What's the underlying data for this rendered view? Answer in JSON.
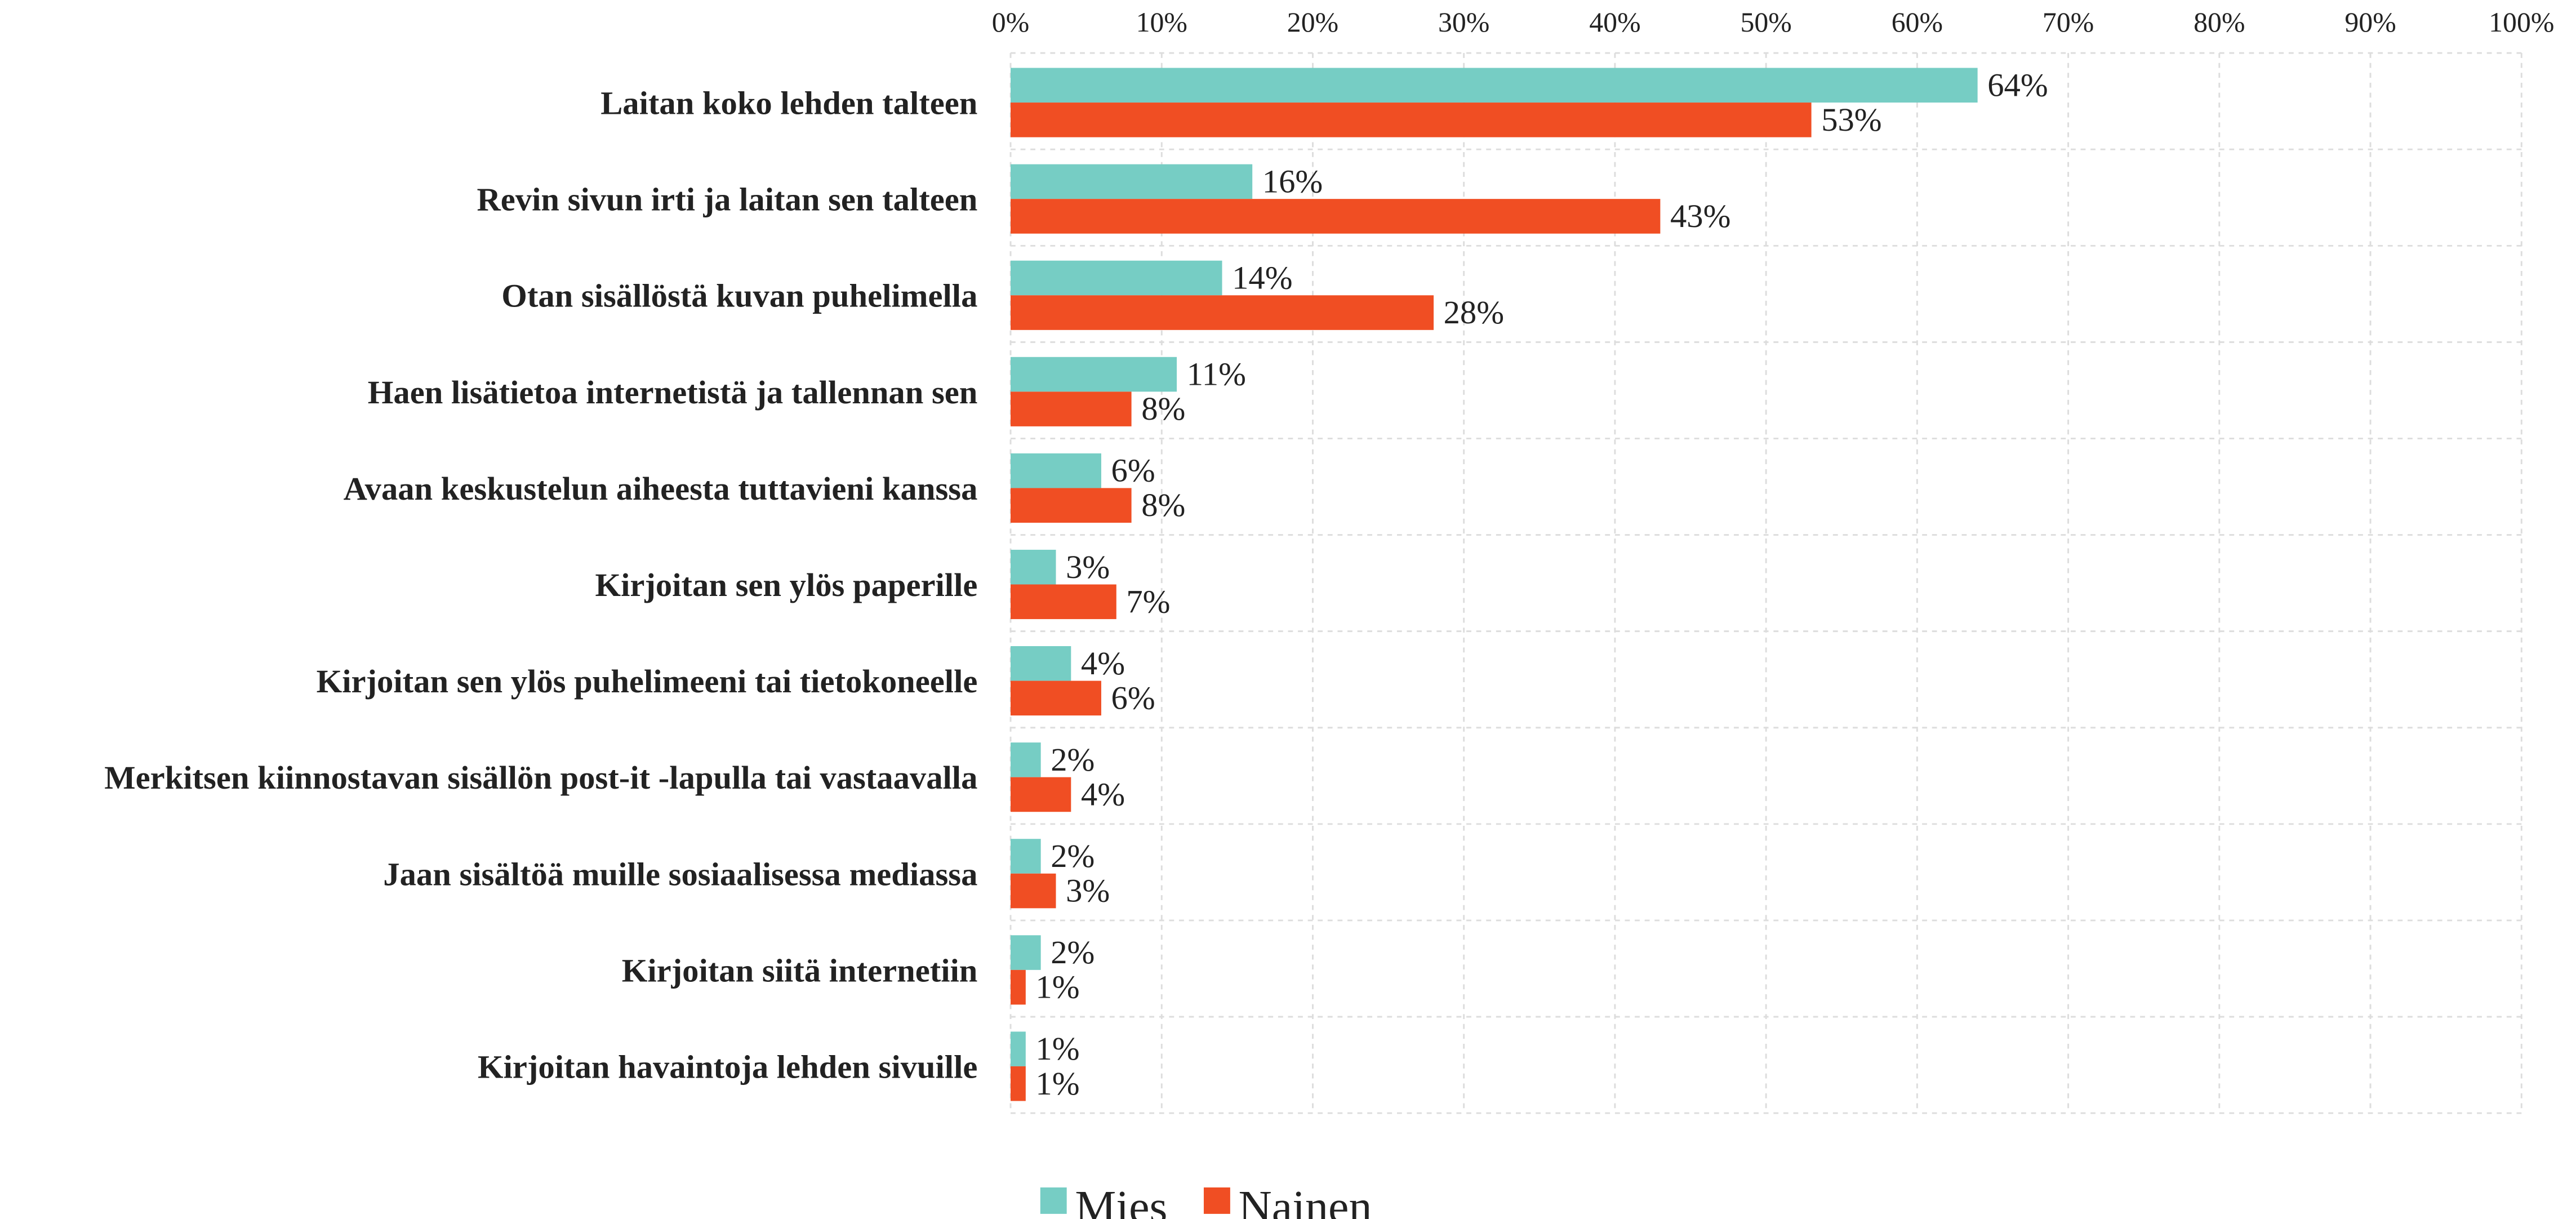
{
  "chart_data": {
    "type": "hbar",
    "categories": [
      "Laitan koko lehden talteen",
      "Revin sivun irti ja laitan sen talteen",
      "Otan sisällöstä kuvan puhelimella",
      "Haen lisätietoa internetistä ja tallennan sen",
      "Avaan keskustelun aiheesta tuttavieni kanssa",
      "Kirjoitan sen ylös paperille",
      "Kirjoitan sen ylös puhelimeeni tai tietokoneelle",
      "Merkitsen kiinnostavan sisällön post-it -lapulla tai vastaavalla",
      "Jaan sisältöä muille sosiaalisessa mediassa",
      "Kirjoitan siitä internetiin",
      "Kirjoitan havaintoja lehden sivuille"
    ],
    "series": [
      {
        "name": "Mies",
        "color": "#76cdc4",
        "values": [
          64,
          16,
          14,
          11,
          6,
          3,
          4,
          2,
          2,
          2,
          1
        ],
        "value_labels": [
          "64%",
          "16%",
          "14%",
          "11%",
          "6%",
          "3%",
          "4%",
          "2%",
          "2%",
          "2%",
          "1%"
        ]
      },
      {
        "name": "Nainen",
        "color": "#f04e23",
        "values": [
          53,
          43,
          28,
          8,
          8,
          7,
          6,
          4,
          3,
          1,
          1
        ],
        "value_labels": [
          "53%",
          "43%",
          "28%",
          "8%",
          "8%",
          "7%",
          "6%",
          "4%",
          "3%",
          "1%",
          "1%"
        ]
      }
    ],
    "xlim": [
      0,
      100
    ],
    "xticks": [
      {
        "value": 0,
        "label": "0%"
      },
      {
        "value": 10,
        "label": "10%"
      },
      {
        "value": 20,
        "label": "20%"
      },
      {
        "value": 30,
        "label": "30%"
      },
      {
        "value": 40,
        "label": "40%"
      },
      {
        "value": 50,
        "label": "50%"
      },
      {
        "value": 60,
        "label": "60%"
      },
      {
        "value": 70,
        "label": "70%"
      },
      {
        "value": 80,
        "label": "80%"
      },
      {
        "value": 90,
        "label": "90%"
      },
      {
        "value": 100,
        "label": "100%"
      }
    ],
    "grid": true,
    "legend": "bottom"
  }
}
